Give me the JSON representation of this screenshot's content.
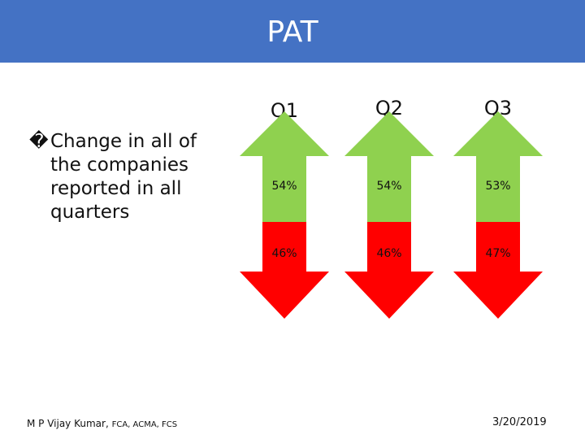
{
  "slide": {
    "title": "PAT",
    "bullet": {
      "glyph": "�",
      "text": "Change in all of the companies reported in all quarters"
    },
    "quarters": [
      {
        "label": "Q1",
        "up_pct": "54%",
        "down_pct": "46%"
      },
      {
        "label": "Q2",
        "up_pct": "54%",
        "down_pct": "46%"
      },
      {
        "label": "Q3",
        "up_pct": "53%",
        "down_pct": "47%"
      }
    ],
    "footer": {
      "author": "M P Vijay Kumar,",
      "credentials": "FCA, ACMA, FCS",
      "date": "3/20/2019"
    }
  },
  "colors": {
    "title_bar": "#4472c4",
    "up_arrow": "#8fd14f",
    "down_arrow": "#ff0000"
  }
}
